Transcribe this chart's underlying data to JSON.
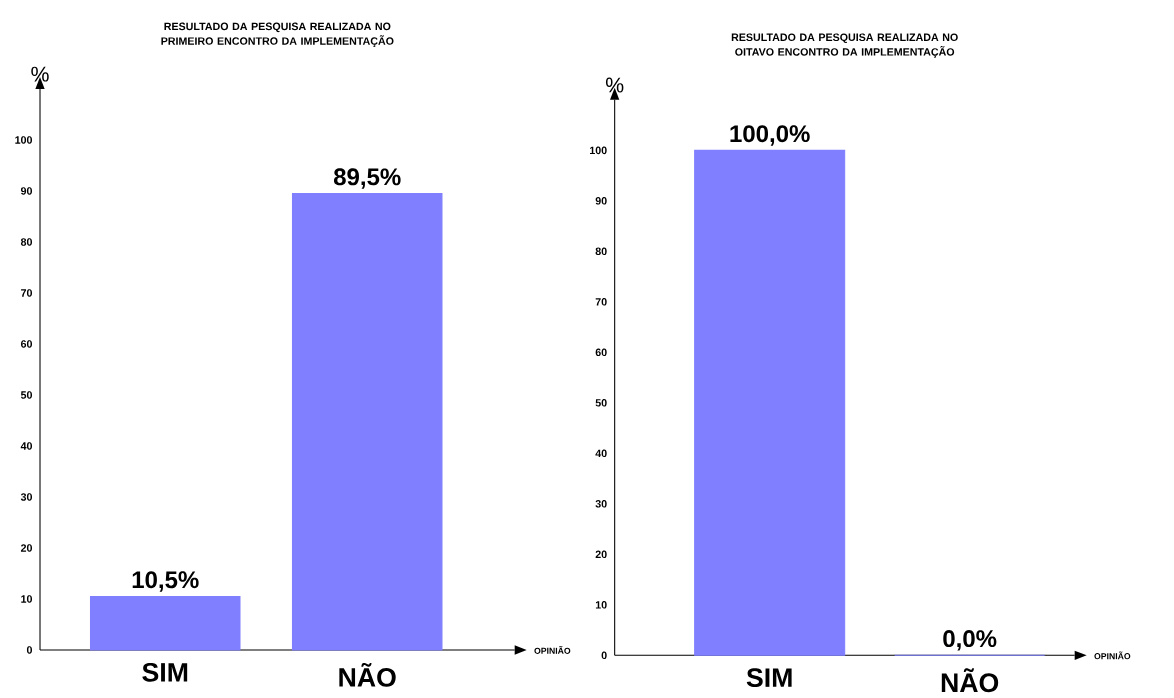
{
  "chart_data": [
    {
      "type": "bar",
      "title": "RESULTADO  DA  PESQUISA  REALIZADA NO PRIMEIRO ENCONTRO DA IMPLEMENTAÇÃO",
      "xlabel": "OPINIÃO",
      "ylabel": "%",
      "categories": [
        "SIM",
        "NÃO"
      ],
      "values": [
        10.5,
        89.5
      ],
      "value_labels": [
        "10,5%",
        "89,5%"
      ],
      "color": "#7f7fff",
      "ylim": [
        0,
        110
      ],
      "yticks": [
        0,
        10,
        20,
        30,
        40,
        50,
        60,
        70,
        80,
        90,
        100
      ]
    },
    {
      "type": "bar",
      "title": "RESULTADO  DA  PESQUISA  REALIZADA NO OITAVO ENCONTRO DA IMPLEMENTAÇÃO",
      "xlabel": "OPINIÃO",
      "ylabel": "%",
      "categories": [
        "SIM",
        "NÃO"
      ],
      "values": [
        100,
        0
      ],
      "value_labels": [
        "100,0%",
        "0,0%"
      ],
      "color": "#7f7fff",
      "ylim": [
        0,
        110
      ],
      "yticks": [
        0,
        10,
        20,
        30,
        40,
        50,
        60,
        70,
        80,
        90,
        100
      ]
    }
  ]
}
